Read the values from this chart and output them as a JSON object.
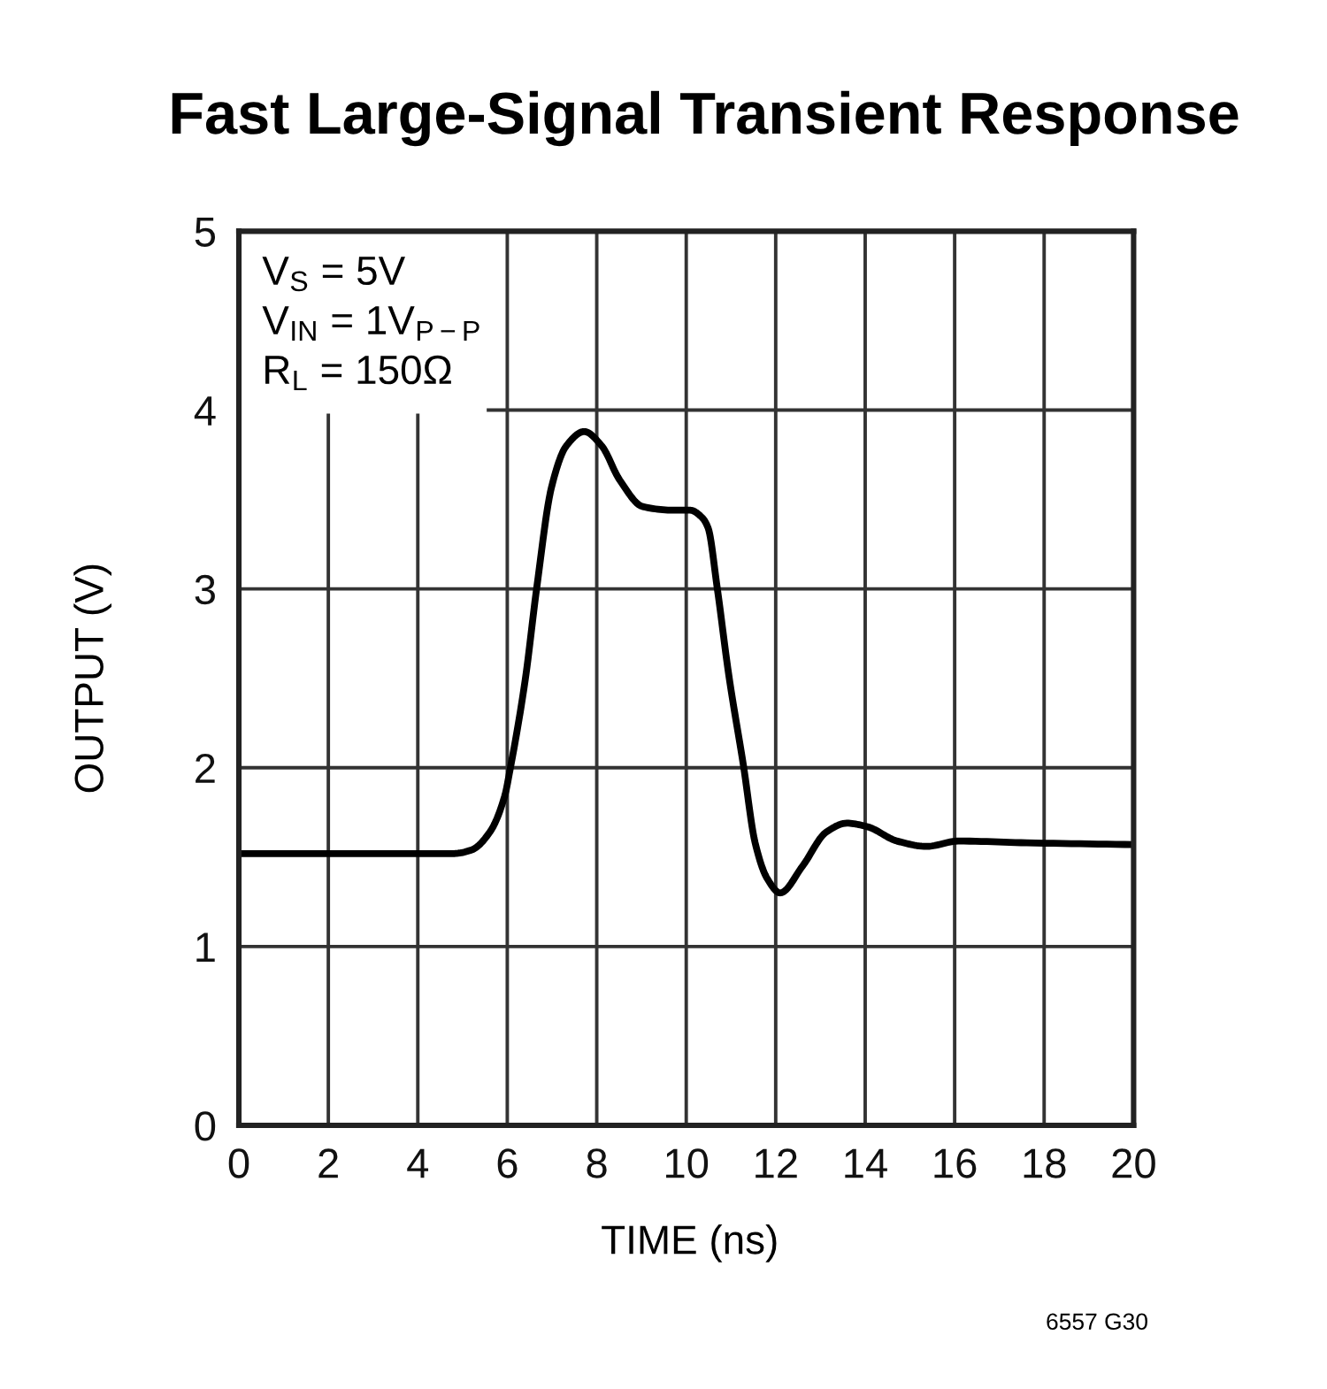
{
  "chart_data": {
    "type": "line",
    "title": "Fast Large-Signal Transient Response",
    "xlabel": "TIME (ns)",
    "ylabel": "OUTPUT (V)",
    "annotations": [
      "V$_{S}$ = 5V",
      "V$_{IN}$ = 1V$_{P−P}$",
      "R$_{L}$ = 150Ω",
      "6557 G30"
    ],
    "x": [
      0,
      1,
      2,
      3,
      4,
      4.8,
      5.2,
      5.61,
      5.94,
      6.07,
      6.4,
      6.66,
      6.99,
      7.32,
      7.72,
      8.11,
      8.51,
      9.03,
      9.7,
      10.09,
      10.35,
      10.49,
      10.69,
      10.95,
      11.28,
      11.54,
      11.81,
      12.1,
      12.6,
      13.13,
      13.59,
      14.05,
      14.71,
      15.37,
      16.08,
      17.61,
      20
    ],
    "series": [
      {
        "color": "#000000",
        "values": [
          1.52,
          1.52,
          1.52,
          1.52,
          1.52,
          1.52,
          1.54,
          1.64,
          1.84,
          2.0,
          2.49,
          3.01,
          3.57,
          3.8,
          3.88,
          3.8,
          3.61,
          3.46,
          3.44,
          3.44,
          3.4,
          3.34,
          3.01,
          2.52,
          2.01,
          1.58,
          1.38,
          1.3,
          1.45,
          1.64,
          1.69,
          1.67,
          1.59,
          1.56,
          1.59,
          1.58,
          1.57
        ]
      }
    ],
    "xlim": [
      0,
      20
    ],
    "ylim": [
      0,
      5
    ],
    "xticks": [
      0,
      2,
      4,
      6,
      8,
      10,
      12,
      14,
      16,
      18,
      20
    ],
    "yticks": [
      0,
      1,
      2,
      3,
      4,
      5
    ],
    "grid": true,
    "line_style": "solid"
  }
}
